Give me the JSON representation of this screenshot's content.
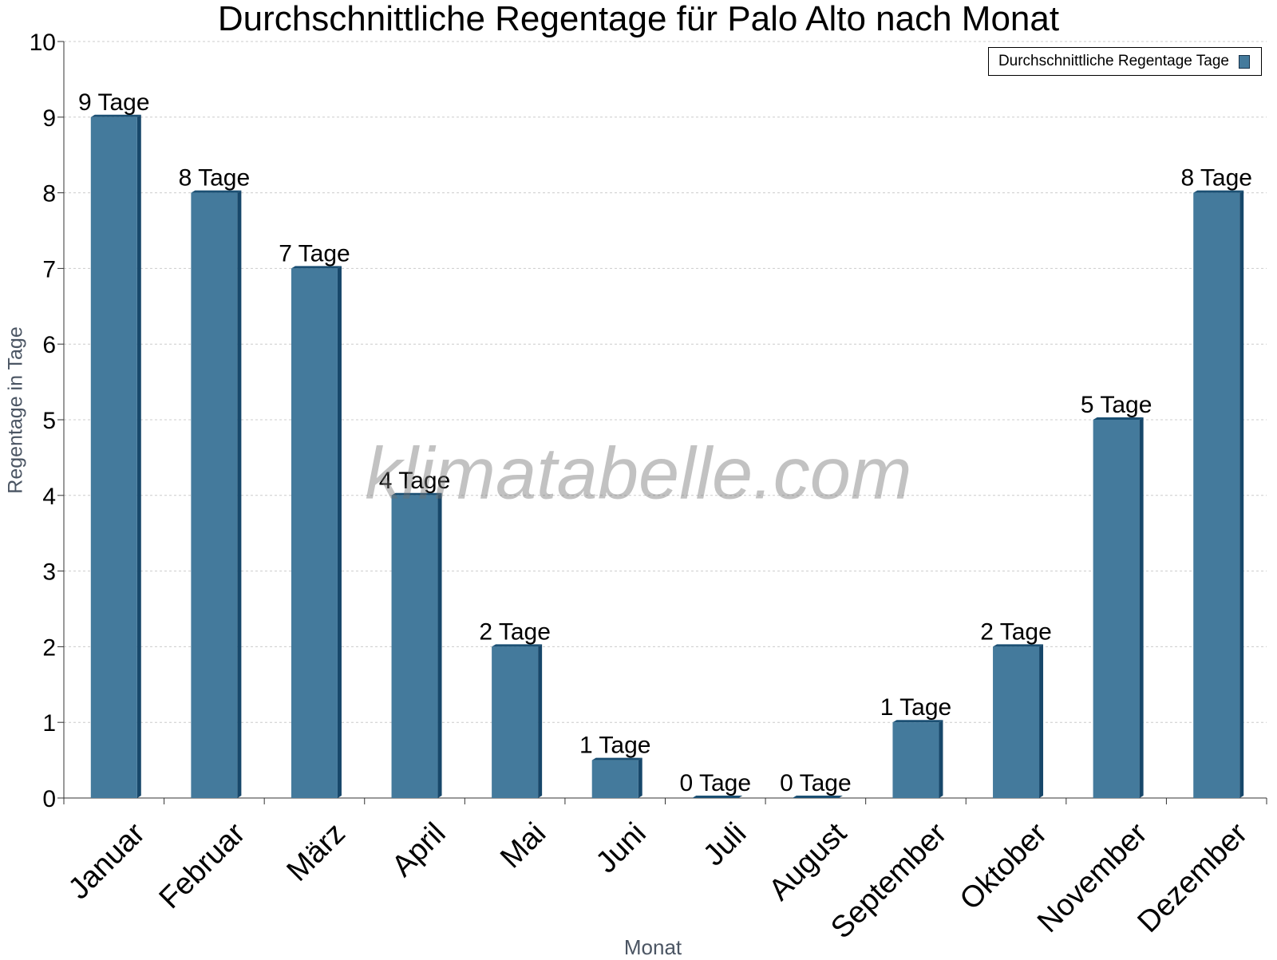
{
  "chart_data": {
    "type": "bar",
    "title": "Durchschnittliche Regentage für Palo Alto nach Monat",
    "xlabel": "Monat",
    "ylabel": "Regentage in Tage",
    "ylim": [
      0,
      10
    ],
    "yticks": [
      "0",
      "1",
      "2",
      "3",
      "4",
      "5",
      "6",
      "7",
      "8",
      "9",
      "10"
    ],
    "grid": true,
    "legend_position": "top-right",
    "categories": [
      "Januar",
      "Februar",
      "März",
      "April",
      "Mai",
      "Juni",
      "Juli",
      "August",
      "September",
      "Oktober",
      "November",
      "Dezember"
    ],
    "series": [
      {
        "name": "Durchschnittliche Regentage Tage",
        "values": [
          9,
          8,
          7,
          4,
          2,
          0.5,
          0,
          0,
          1,
          2,
          5,
          8
        ],
        "labels": [
          "9 Tage",
          "8 Tage",
          "7 Tage",
          "4 Tage",
          "2 Tage",
          "1 Tage",
          "0 Tage",
          "0 Tage",
          "1 Tage",
          "2 Tage",
          "5 Tage",
          "8 Tage"
        ],
        "color": "#447a9c"
      }
    ]
  },
  "watermark": "klimatabelle.com",
  "colors": {
    "bar_front": "#447a9c",
    "bar_side": "#17476a",
    "bar_top": "#1a4f73",
    "grid": "#cccccc",
    "axis": "#333333"
  }
}
